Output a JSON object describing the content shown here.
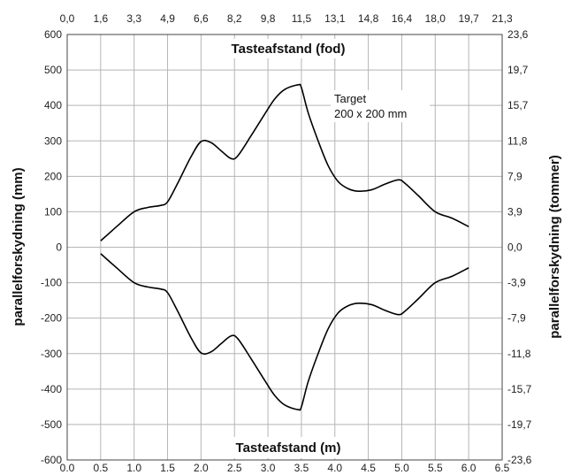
{
  "chart_data": {
    "type": "line",
    "title": "",
    "xlabel_bottom": "Tasteafstand (m)",
    "xlabel_top": "Tasteafstand (fod)",
    "ylabel_left": "parallelforskydning  (mm)",
    "ylabel_right": "parallelforskydning  (tommer)",
    "xlim": [
      0,
      6.5
    ],
    "ylim": [
      -600,
      600
    ],
    "grid": true,
    "x_ticks": [
      "0.0",
      "0.5",
      "1.0",
      "1.5",
      "2.0",
      "2.5",
      "3.0",
      "3.5",
      "4.0",
      "4.5",
      "5.0",
      "5.5",
      "6.0",
      "6.5"
    ],
    "x_ticks_top": [
      "0,0",
      "1,6",
      "3,3",
      "4,9",
      "6,6",
      "8,2",
      "9,8",
      "11,5",
      "13,1",
      "14,8",
      "16,4",
      "18,0",
      "19,7",
      "21,3"
    ],
    "y_ticks": [
      "600",
      "500",
      "400",
      "300",
      "200",
      "100",
      "0",
      "-100",
      "-200",
      "-300",
      "-400",
      "-500",
      "-600"
    ],
    "y_ticks_right": [
      "23,6",
      "19,7",
      "15,7",
      "11,8",
      "7,9",
      "3,9",
      "0,0",
      "-3,9",
      "-7,9",
      "-11,8",
      "-15,7",
      "-19,7",
      "-23,6"
    ],
    "annotation_lines": [
      "Target",
      "200 x 200 mm"
    ],
    "series": [
      {
        "x": [
          0.5,
          0.75,
          1.0,
          1.2,
          1.4,
          1.5,
          1.65,
          1.85,
          2.0,
          2.15,
          2.3,
          2.45,
          2.55,
          2.75,
          2.95,
          3.1,
          3.25,
          3.45,
          3.5,
          3.6,
          3.75,
          3.9,
          4.05,
          4.2,
          4.35,
          4.55,
          4.75,
          4.95,
          5.05,
          5.25,
          5.5,
          5.75,
          6.0
        ],
        "values": [
          18,
          60,
          100,
          112,
          118,
          128,
          180,
          255,
          298,
          295,
          272,
          250,
          258,
          315,
          375,
          418,
          445,
          458,
          450,
          380,
          300,
          230,
          185,
          165,
          158,
          162,
          178,
          190,
          180,
          145,
          100,
          82,
          58
        ]
      },
      {
        "x": [
          0.5,
          0.75,
          1.0,
          1.2,
          1.4,
          1.5,
          1.65,
          1.85,
          2.0,
          2.15,
          2.3,
          2.45,
          2.55,
          2.75,
          2.95,
          3.1,
          3.25,
          3.45,
          3.5,
          3.6,
          3.75,
          3.9,
          4.05,
          4.2,
          4.35,
          4.55,
          4.75,
          4.95,
          5.05,
          5.25,
          5.5,
          5.75,
          6.0
        ],
        "values": [
          -18,
          -60,
          -100,
          -112,
          -118,
          -128,
          -180,
          -255,
          -298,
          -295,
          -272,
          -250,
          -258,
          -315,
          -375,
          -418,
          -445,
          -458,
          -450,
          -380,
          -300,
          -230,
          -185,
          -165,
          -158,
          -162,
          -178,
          -190,
          -180,
          -145,
          -100,
          -82,
          -58
        ]
      }
    ]
  }
}
